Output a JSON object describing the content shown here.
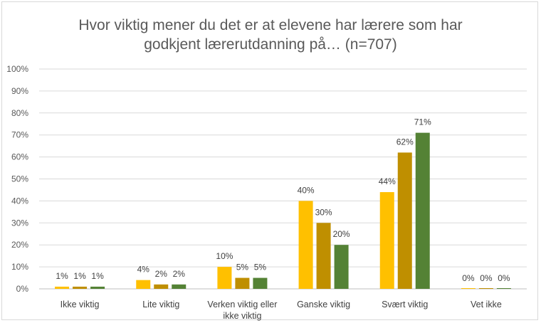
{
  "chart_data": {
    "type": "bar",
    "title": [
      "Hvor viktig mener du det er at elevene har lærere som har",
      "godkjent lærerutdanning på… (n=707)"
    ],
    "categories": [
      [
        "Ikke viktig"
      ],
      [
        "Lite viktig"
      ],
      [
        "Verken viktig eller",
        "ikke viktig"
      ],
      [
        "Ganske viktig"
      ],
      [
        "Svært viktig"
      ],
      [
        "Vet ikke"
      ]
    ],
    "series": [
      {
        "values": [
          1,
          4,
          10,
          40,
          44,
          0
        ],
        "color": "#ffc000"
      },
      {
        "values": [
          1,
          2,
          5,
          30,
          62,
          0
        ],
        "color": "#bf8f00"
      },
      {
        "values": [
          1,
          2,
          5,
          20,
          71,
          0
        ],
        "color": "#548235"
      }
    ],
    "y_ticks": [
      "0%",
      "10%",
      "20%",
      "30%",
      "40%",
      "50%",
      "60%",
      "70%",
      "80%",
      "90%",
      "100%"
    ],
    "ylim": [
      0,
      100
    ],
    "value_suffix": "%",
    "grid": true,
    "legend": "none"
  }
}
